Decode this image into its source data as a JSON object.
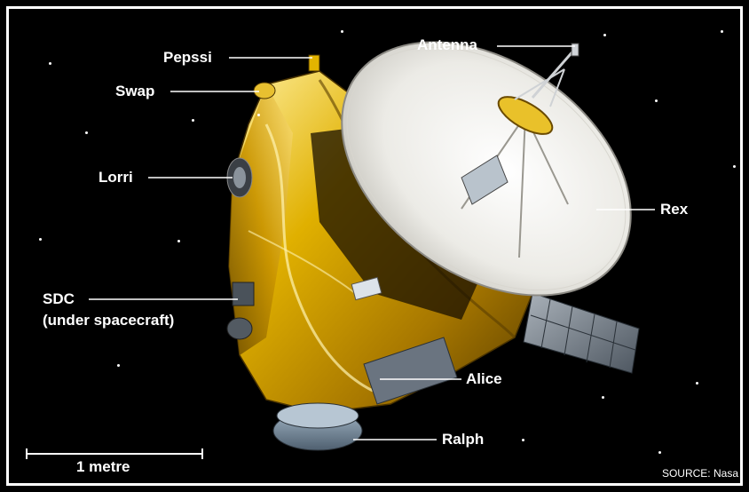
{
  "labels": {
    "antenna": "Antenna",
    "pepssi": "Pepssi",
    "swap": "Swap",
    "lorri": "Lorri",
    "rex": "Rex",
    "sdc_line1": "SDC",
    "sdc_line2": "(under spacecraft)",
    "alice": "Alice",
    "ralph": "Ralph"
  },
  "scale_bar": {
    "label": "1 metre"
  },
  "source": "SOURCE: Nasa",
  "colors": {
    "background": "#000000",
    "frame": "#ffffff",
    "gold": "#d9a300",
    "gold_dark": "#6e4d00",
    "dish": "#f2f2ee",
    "panel": "#7a8590",
    "leader": "#ffffff"
  }
}
